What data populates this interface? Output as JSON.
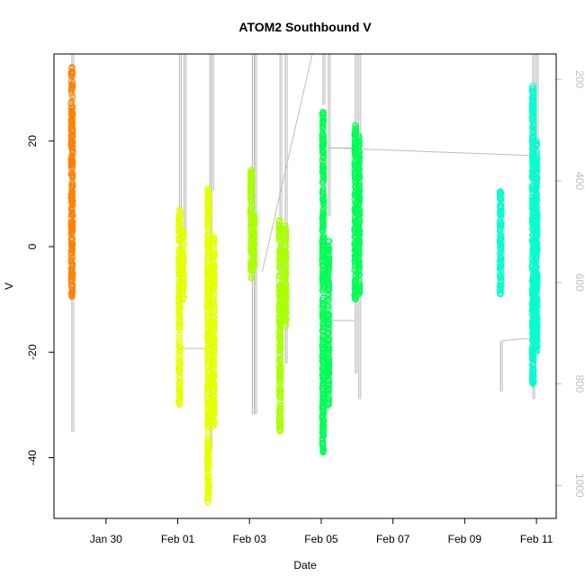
{
  "chart_data": {
    "type": "scatter",
    "title": "ATOM2 Southbound V",
    "xlabel": "Date",
    "ylabel": "V",
    "x_ticks": [
      "Jan 30",
      "Feb 01",
      "Feb 03",
      "Feb 05",
      "Feb 07",
      "Feb 09",
      "Feb 11"
    ],
    "x_tick_values": [
      30,
      32,
      34,
      36,
      38,
      40,
      42
    ],
    "xlim": [
      28.55,
      42.55
    ],
    "y_ticks": [
      -40,
      -20,
      0,
      20
    ],
    "ylim": [
      -51.5,
      36.5
    ],
    "y2_ticks": [
      200,
      400,
      600,
      800,
      1000
    ],
    "y2lim": [
      1065,
      150
    ],
    "y2_color": "#bfbfbf",
    "line_color": "#bdbdbd",
    "grid": false,
    "series": [
      {
        "color": "#ff8000",
        "points": [
          {
            "x": 29.05,
            "y_min": -9.5,
            "y_max": 34,
            "depth_line": [
              29.05,
              895,
              29.05,
              150
            ]
          }
        ]
      },
      {
        "color": "#e6ff00",
        "points": [
          {
            "x": 32.05,
            "y_min": -30,
            "y_max": 7,
            "depth_line": [
              32.05,
              150,
              32.05,
              655
            ]
          },
          {
            "x": 32.15,
            "y_min": -10,
            "y_max": 3,
            "depth_line": [
              32.18,
              150,
              32.18,
              500
            ]
          },
          {
            "x": 32.85,
            "y_min": -48.5,
            "y_max": 11,
            "depth_line": [
              32.9,
              150,
              32.9,
              930
            ]
          },
          {
            "x": 33.0,
            "y_min": -34,
            "y_max": 2,
            "depth_line": [
              32.95,
              150,
              32.95,
              420
            ]
          }
        ]
      },
      {
        "color": "#aaff00",
        "points": [
          {
            "x": 34.05,
            "y_min": -6,
            "y_max": 14.5,
            "depth_line": [
              34.08,
              150,
              34.08,
              860
            ]
          },
          {
            "x": 34.12,
            "y_min": -4,
            "y_max": 6,
            "depth_line": [
              34.15,
              150,
              34.15,
              860
            ]
          },
          {
            "x": 34.85,
            "y_min": -35,
            "y_max": 5,
            "depth_line": [
              34.85,
              150,
              34.85,
              790
            ]
          },
          {
            "x": 35.0,
            "y_min": -15,
            "y_max": 4,
            "depth_line": [
              35.0,
              150,
              35.0,
              760
            ]
          }
        ]
      },
      {
        "color": "#00ff55",
        "points": [
          {
            "x": 36.05,
            "y_min": -39,
            "y_max": 25.5,
            "depth_line": [
              36.05,
              150,
              36.05,
              250
            ]
          },
          {
            "x": 36.2,
            "y_min": -30,
            "y_max": 1,
            "depth_line": [
              36.2,
              150,
              36.2,
              470
            ]
          },
          {
            "x": 36.95,
            "y_min": -10,
            "y_max": 23,
            "depth_line": [
              36.95,
              150,
              36.95,
              780
            ]
          },
          {
            "x": 37.05,
            "y_min": -9,
            "y_max": 21,
            "depth_line": [
              37.05,
              150,
              37.05,
              830
            ]
          }
        ]
      },
      {
        "color": "#00ffcc",
        "points": [
          {
            "x": 41.0,
            "y_min": -9,
            "y_max": 10.5,
            "depth_line": [
              41.0,
              815,
              41.0,
              715
            ]
          },
          {
            "x": 41.9,
            "y_min": -26,
            "y_max": 30.5,
            "depth_line": [
              41.9,
              150,
              41.9,
              830
            ]
          },
          {
            "x": 42.0,
            "y_min": -20,
            "y_max": 20,
            "depth_line": [
              42.0,
              150,
              42.0,
              740
            ]
          }
        ]
      }
    ],
    "connector_lines": [
      [
        32.15,
        730,
        32.8,
        730
      ],
      [
        34.35,
        580,
        35.75,
        150
      ],
      [
        36.2,
        335,
        36.95,
        335
      ],
      [
        36.25,
        675,
        36.95,
        675
      ],
      [
        36.25,
        335,
        41.85,
        350
      ],
      [
        41.05,
        715,
        41.85,
        710
      ]
    ]
  }
}
